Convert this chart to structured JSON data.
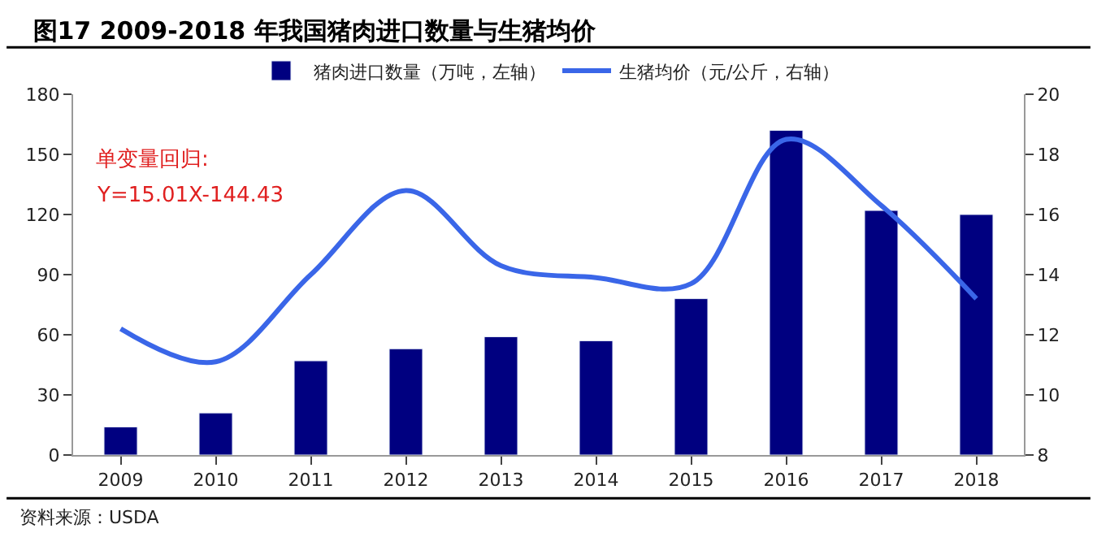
{
  "chart_data": {
    "type": "bar",
    "title": "图17 2009-2018 年我国猪肉进口数量与生猪均价",
    "categories": [
      "2009",
      "2010",
      "2011",
      "2012",
      "2013",
      "2014",
      "2015",
      "2016",
      "2017",
      "2018"
    ],
    "series": [
      {
        "name": "猪肉进口数量（万吨，左轴）",
        "color": "#000080",
        "values": [
          14,
          21,
          47,
          53,
          59,
          57,
          78,
          162,
          122,
          120
        ]
      },
      {
        "name": "生猪均价（元/公斤，右轴）",
        "type": "line",
        "axis": "y2",
        "color": "#3a66e8",
        "values": [
          12.2,
          11.1,
          14.0,
          16.8,
          14.3,
          13.9,
          13.7,
          18.5,
          16.3,
          13.2
        ]
      }
    ],
    "ylim": [
      0,
      180
    ],
    "yticks": [
      0,
      30,
      60,
      90,
      120,
      150,
      180
    ],
    "y2lim": [
      8,
      20
    ],
    "y2ticks": [
      8,
      10,
      12,
      14,
      16,
      18,
      20
    ],
    "legend": "top",
    "marker": "none",
    "annotations": [
      "单变量回归:",
      "Y=15.01X-144.43",
      "资料来源：USDA"
    ]
  }
}
